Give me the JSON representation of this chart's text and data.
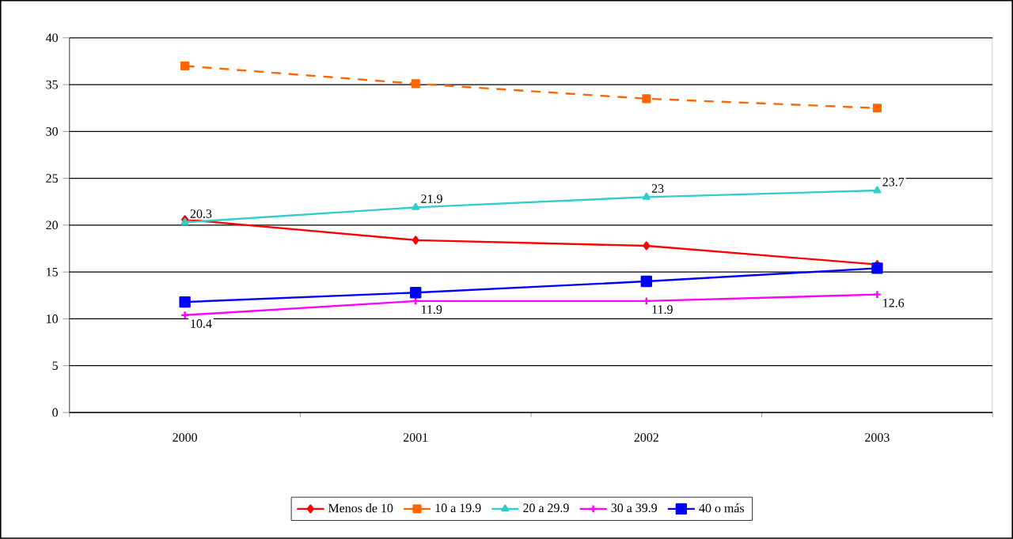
{
  "chart_data": {
    "type": "line",
    "categories": [
      "2000",
      "2001",
      "2002",
      "2003"
    ],
    "ylim": [
      0,
      40
    ],
    "yticks": [
      0,
      5,
      10,
      15,
      20,
      25,
      30,
      35,
      40
    ],
    "grid": "y",
    "legend": "bottom",
    "series": [
      {
        "name": "Menos de 10",
        "color": "#ff0000",
        "marker": "diamond",
        "line_style": "solid",
        "values": [
          20.6,
          18.4,
          17.8,
          15.8
        ]
      },
      {
        "name": "10 a 19.9",
        "color": "#ff6600",
        "marker": "square",
        "line_style": "dashed",
        "values": [
          37.0,
          35.1,
          33.5,
          32.5
        ]
      },
      {
        "name": "20 a 29.9",
        "color": "#33cccc",
        "marker": "triangle",
        "line_style": "solid",
        "values": [
          20.3,
          21.9,
          23,
          23.7
        ],
        "value_labels": [
          "20.3",
          "21.9",
          "23",
          "23.7"
        ]
      },
      {
        "name": "30 a 39.9",
        "color": "#ff00ff",
        "marker": "cross",
        "line_style": "solid",
        "values": [
          10.4,
          11.9,
          11.9,
          12.6
        ],
        "value_labels": [
          "10.4",
          "11.9",
          "11.9",
          "12.6"
        ]
      },
      {
        "name": "40 o más",
        "color": "#0000ff",
        "marker": "square",
        "line_style": "solid",
        "values": [
          11.8,
          12.8,
          14.0,
          15.4
        ]
      }
    ]
  }
}
